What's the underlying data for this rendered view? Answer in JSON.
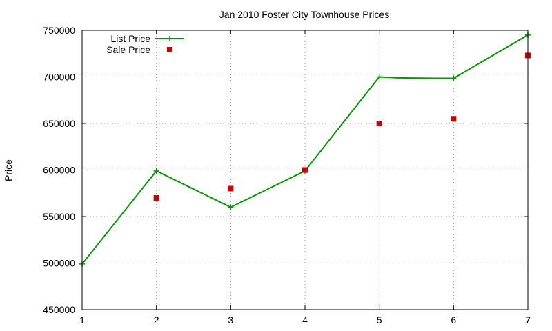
{
  "chart_data": {
    "type": "line",
    "title": "Jan 2010 Foster City Townhouse Prices",
    "xlabel": "",
    "ylabel": "Price",
    "xlim": [
      1,
      7
    ],
    "ylim": [
      450000,
      750000
    ],
    "x_ticks": [
      1,
      2,
      3,
      4,
      5,
      6,
      7
    ],
    "y_ticks": [
      450000,
      500000,
      550000,
      600000,
      650000,
      700000,
      750000
    ],
    "grid": true,
    "legend_position": "top-left",
    "series": [
      {
        "name": "List Price",
        "style": "line-with-plus-markers",
        "color": "#009900",
        "points": [
          {
            "x": 1,
            "y": 499000
          },
          {
            "x": 2,
            "y": 599000
          },
          {
            "x": 3,
            "y": 560000
          },
          {
            "x": 4,
            "y": 599000
          },
          {
            "x": 5,
            "y": 700000
          },
          {
            "x": 5.25,
            "y": 699000
          },
          {
            "x": 5.75,
            "y": 698500
          },
          {
            "x": 6,
            "y": 698500
          },
          {
            "x": 7,
            "y": 745000
          }
        ]
      },
      {
        "name": "Sale Price",
        "style": "square-markers",
        "color": "#cc0000",
        "points": [
          {
            "x": 2,
            "y": 570000
          },
          {
            "x": 3,
            "y": 580000
          },
          {
            "x": 4,
            "y": 600000
          },
          {
            "x": 5,
            "y": 650000
          },
          {
            "x": 6,
            "y": 655000
          },
          {
            "x": 7,
            "y": 723000
          }
        ]
      }
    ]
  }
}
